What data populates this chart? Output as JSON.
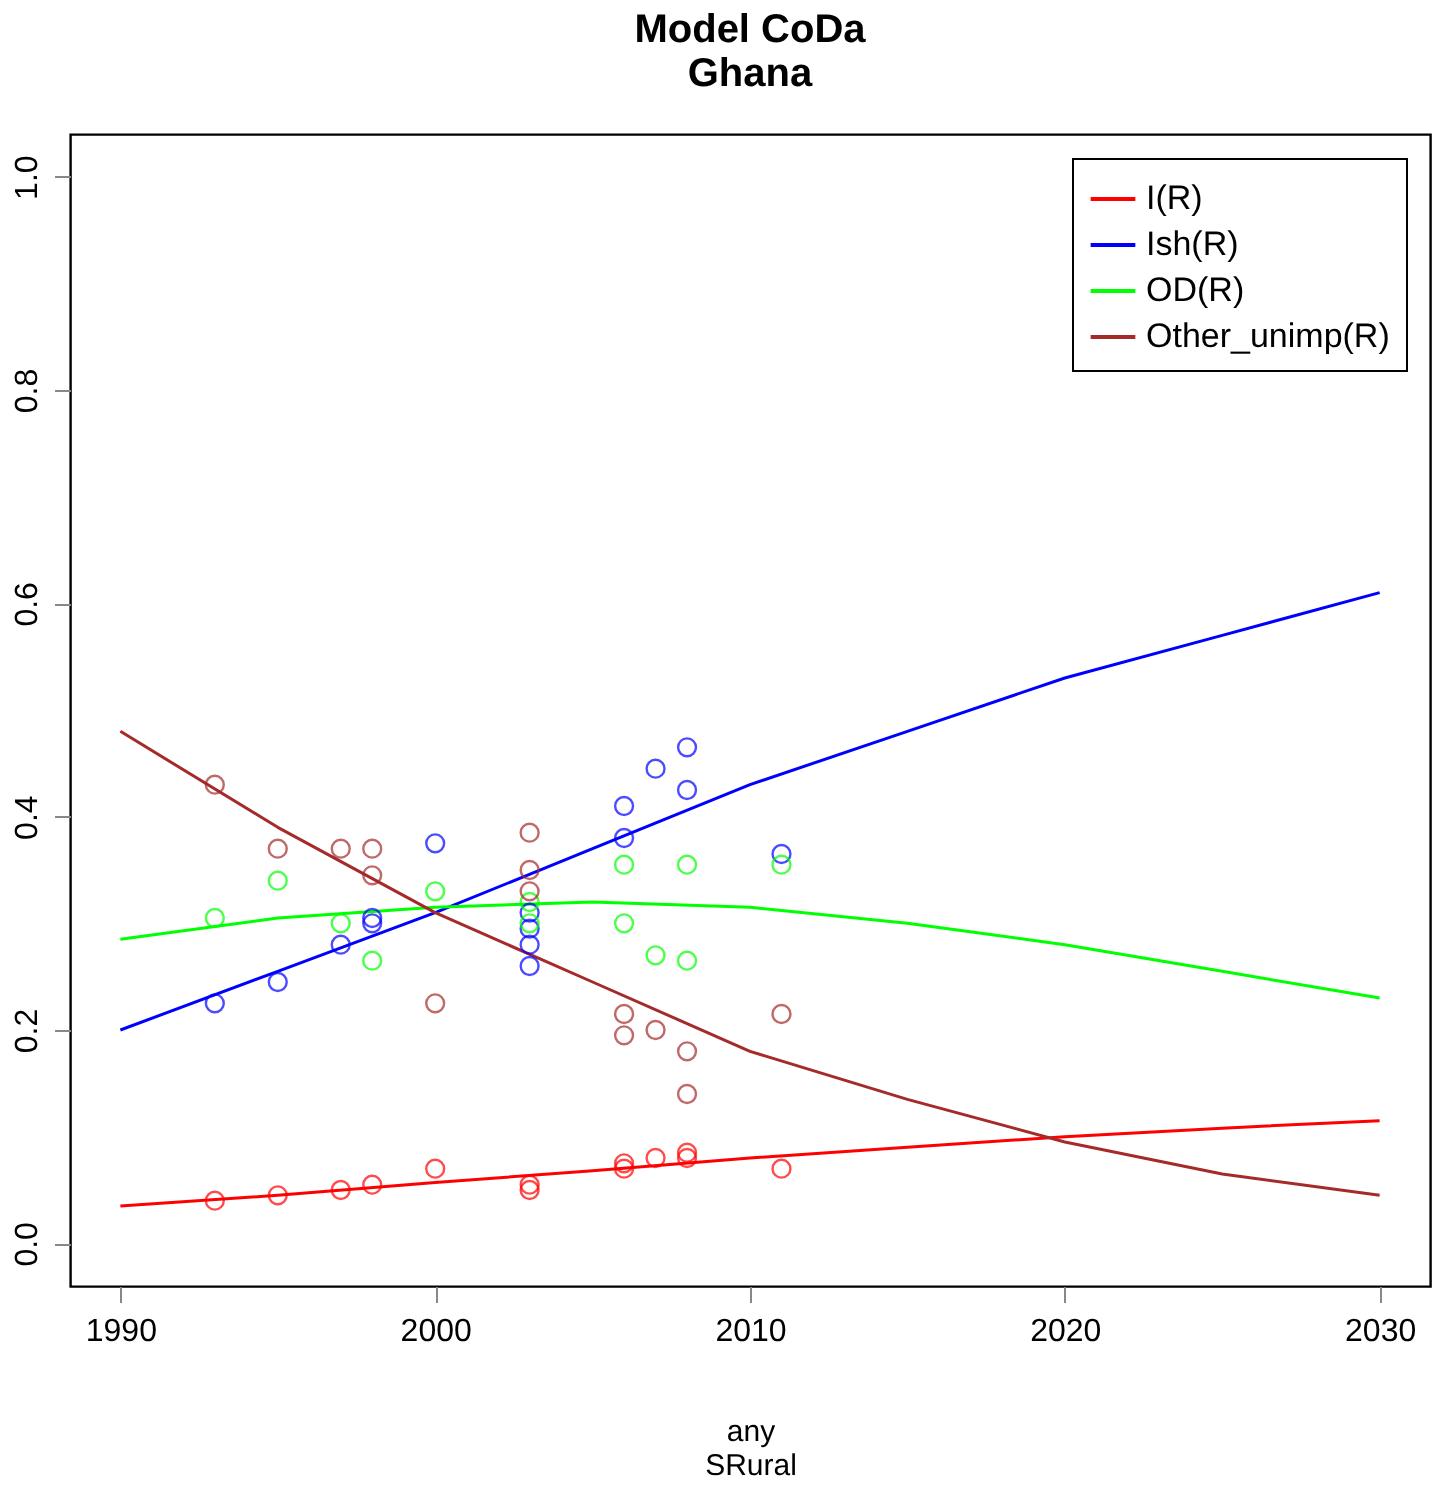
{
  "chart_data": {
    "type": "line",
    "title": [
      "Model CoDa",
      "Ghana"
    ],
    "xlabel": [
      "any",
      "SRural"
    ],
    "xlim": [
      1988.4,
      2031.6
    ],
    "xticks": [
      1990,
      2000,
      2010,
      2020,
      2030
    ],
    "ylim": [
      -0.04,
      1.04
    ],
    "yticks": [
      {
        "value": 0,
        "label": "0.0"
      },
      0.2,
      0.4,
      0.6,
      0.8,
      {
        "value": 1,
        "label": "1.0"
      }
    ],
    "grid": false,
    "legend": "top right",
    "series": [
      {
        "name": "I(R)",
        "color": "#ff0000",
        "x": [
          1990,
          1995,
          2000,
          2005,
          2010,
          2015,
          2020,
          2025,
          2030
        ],
        "values": [
          0.035,
          0.045,
          0.057,
          0.068,
          0.08,
          0.09,
          0.1,
          0.108,
          0.115
        ]
      },
      {
        "name": "Ish(R)",
        "color": "#0000ff",
        "x": [
          1990,
          1995,
          2000,
          2005,
          2010,
          2015,
          2020,
          2025,
          2030
        ],
        "values": [
          0.2,
          0.255,
          0.31,
          0.37,
          0.43,
          0.48,
          0.53,
          0.57,
          0.61
        ]
      },
      {
        "name": "OD(R)",
        "color": "#00ff00",
        "x": [
          1990,
          1995,
          2000,
          2005,
          2010,
          2015,
          2020,
          2025,
          2030
        ],
        "values": [
          0.285,
          0.305,
          0.315,
          0.32,
          0.315,
          0.3,
          0.28,
          0.255,
          0.23
        ]
      },
      {
        "name": "Other_unimp(R)",
        "color": "#a52a2a",
        "x": [
          1990,
          1995,
          2000,
          2005,
          2010,
          2015,
          2020,
          2025,
          2030
        ],
        "values": [
          0.48,
          0.39,
          0.31,
          0.245,
          0.18,
          0.135,
          0.095,
          0.065,
          0.045
        ]
      },
      {
        "color": "#ff0000",
        "type": "scatter",
        "marker": "circle",
        "x": [
          1993,
          1995,
          1997,
          1998,
          2000,
          2003,
          2003,
          2006,
          2006,
          2007,
          2008,
          2008,
          2011
        ],
        "values": [
          0.04,
          0.045,
          0.05,
          0.055,
          0.07,
          0.05,
          0.055,
          0.07,
          0.075,
          0.08,
          0.08,
          0.085,
          0.07
        ]
      },
      {
        "color": "#0000ff",
        "type": "scatter",
        "marker": "circle",
        "x": [
          1993,
          1995,
          1997,
          1998,
          1998,
          2000,
          2003,
          2003,
          2003,
          2003,
          2006,
          2006,
          2007,
          2008,
          2008,
          2011
        ],
        "values": [
          0.225,
          0.245,
          0.28,
          0.3,
          0.305,
          0.375,
          0.26,
          0.28,
          0.295,
          0.31,
          0.38,
          0.41,
          0.445,
          0.425,
          0.465,
          0.365
        ]
      },
      {
        "color": "#00ff00",
        "type": "scatter",
        "marker": "circle",
        "x": [
          1993,
          1995,
          1997,
          1998,
          2000,
          2003,
          2003,
          2006,
          2006,
          2007,
          2008,
          2008,
          2011
        ],
        "values": [
          0.305,
          0.34,
          0.3,
          0.265,
          0.33,
          0.3,
          0.32,
          0.355,
          0.3,
          0.27,
          0.355,
          0.265,
          0.355
        ]
      },
      {
        "color": "#a52a2a",
        "type": "scatter",
        "marker": "circle",
        "x": [
          1993,
          1995,
          1997,
          1998,
          1998,
          2000,
          2003,
          2003,
          2003,
          2006,
          2006,
          2007,
          2008,
          2008,
          2011
        ],
        "values": [
          0.43,
          0.37,
          0.37,
          0.37,
          0.345,
          0.225,
          0.385,
          0.35,
          0.33,
          0.215,
          0.195,
          0.2,
          0.18,
          0.14,
          0.215
        ]
      }
    ]
  }
}
